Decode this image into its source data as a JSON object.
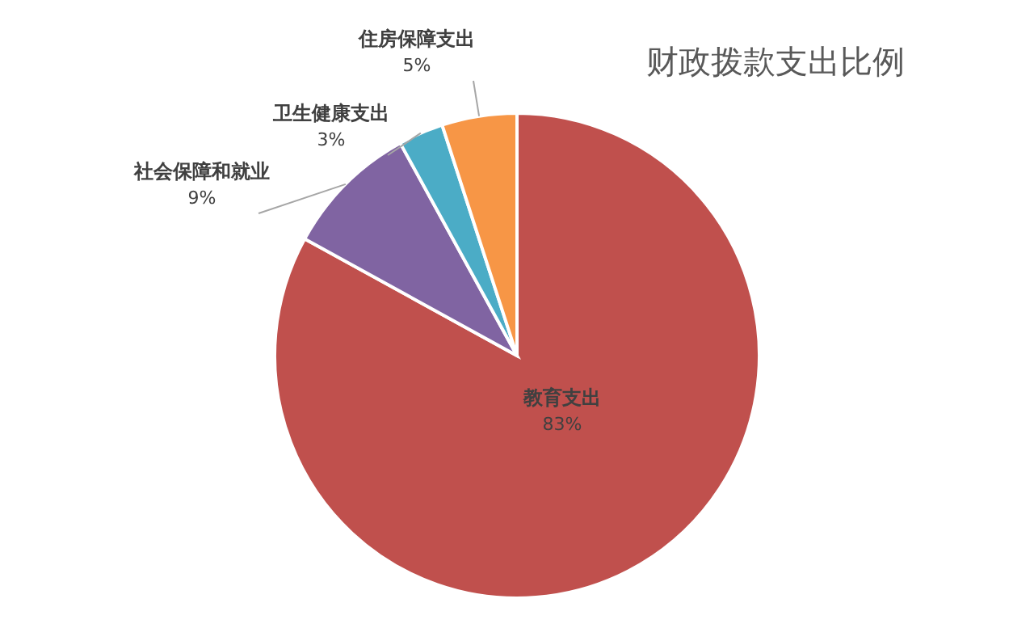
{
  "chart_data": {
    "type": "pie",
    "title": "财政拨款支出比例",
    "categories": [
      "教育支出",
      "社会保障和就业",
      "卫生健康支出",
      "住房保障支出"
    ],
    "values": [
      83,
      9,
      3,
      5
    ],
    "colors": [
      "#c0504d",
      "#8064a2",
      "#4bacc6",
      "#f79646"
    ],
    "value_labels": [
      "83%",
      "9%",
      "3%",
      "5%"
    ]
  }
}
